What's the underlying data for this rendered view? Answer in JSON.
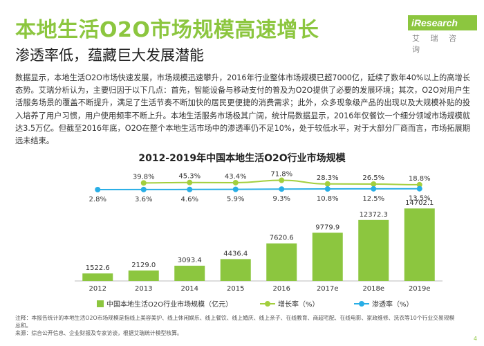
{
  "header": {
    "title": "本地生活O2O市场规模高速增长",
    "subtitle": "渗透率低，蕴藏巨大发展潜能",
    "logo_text": "iResearch",
    "logo_cn": "艾 瑞 咨 询"
  },
  "body_text": "数据显示，本地生活O2O市场快速发展，市场规模迅速攀升，2016年行业整体市场规模已超7000亿，延续了数年40%以上的高增长态势。艾瑞分析认为，主要归因于以下几点：首先，智能设备与移动支付的普及为O2O提供了必要的发展环境；其次，O2O对用户生活服务场景的覆盖不断提升，满足了生活节奏不断加快的居民更便捷的消费需求；此外，众多现象级产品的出现以及大规模补贴的投入培养了用户习惯，用户使用频率不断上升。本地生活服务市场极其广阔，统计局数据显示，2016年仅餐饮一个细分领域市场规模就达3.5万亿。但截至2016年底，O2O在整个本地生活市场中的渗透率仍不足10%，处于较低水平，对于大部分厂商而言，市场拓展期远未结束。",
  "chart_title": "2012-2019年中国本地生活O2O行业市场规模",
  "chart_data": {
    "type": "bar",
    "title": "2012-2019年中国本地生活O2O行业市场规模",
    "categories": [
      "2012",
      "2013",
      "2014",
      "2015",
      "2016",
      "2017e",
      "2018e",
      "2019e"
    ],
    "series": [
      {
        "name": "中国本地生活O2O行业市场规模（亿元）",
        "type": "bar",
        "values": [
          1522.6,
          2129.0,
          3093.4,
          4436.4,
          7620.6,
          9779.9,
          12372.3,
          14702.1
        ],
        "labels": [
          "1522.6",
          "2129.0",
          "3093.4",
          "4436.4",
          "7620.6",
          "9779.9",
          "12372.3",
          "14702.1"
        ]
      },
      {
        "name": "增长率（%）",
        "type": "line",
        "values": [
          null,
          39.8,
          45.3,
          43.4,
          71.8,
          28.3,
          26.5,
          18.8
        ],
        "labels": [
          "",
          "39.8%",
          "45.3%",
          "43.4%",
          "71.8%",
          "28.3%",
          "26.5%",
          "18.8%"
        ]
      },
      {
        "name": "渗透率（%）",
        "type": "line",
        "values": [
          2.8,
          3.6,
          4.6,
          5.9,
          9.3,
          10.8,
          12.5,
          13.5
        ],
        "labels": [
          "2.8%",
          "3.6%",
          "4.6%",
          "5.9%",
          "9.3%",
          "10.8%",
          "12.5%",
          "13.5%"
        ]
      }
    ],
    "colors": {
      "bar": "#8cc63f",
      "growth": "#a3cf3e",
      "penetration": "#29aee6"
    },
    "ylim": [
      0,
      16000
    ],
    "grid": false,
    "legend_position": "bottom"
  },
  "legend": [
    {
      "label": "中国本地生活O2O行业市场规模（亿元）",
      "kind": "bar",
      "color": "#8cc63f"
    },
    {
      "label": "增长率（%）",
      "kind": "line",
      "color": "#a3cf3e"
    },
    {
      "label": "渗透率（%）",
      "kind": "line",
      "color": "#29aee6"
    }
  ],
  "footnote": "注释：本报告统计的本地生活O2O市场规模是指线上美容美护、线上休闲娱乐、线上餐饮、线上婚庆、线上亲子、在线教育、商超宅配、在线电影、家政维修、洗衣等10个行业交易规模总和。",
  "source": "来源：综合公开信息、企业财报及专家访谈，根据艾瑞统计模型核算。",
  "page_number": "4"
}
